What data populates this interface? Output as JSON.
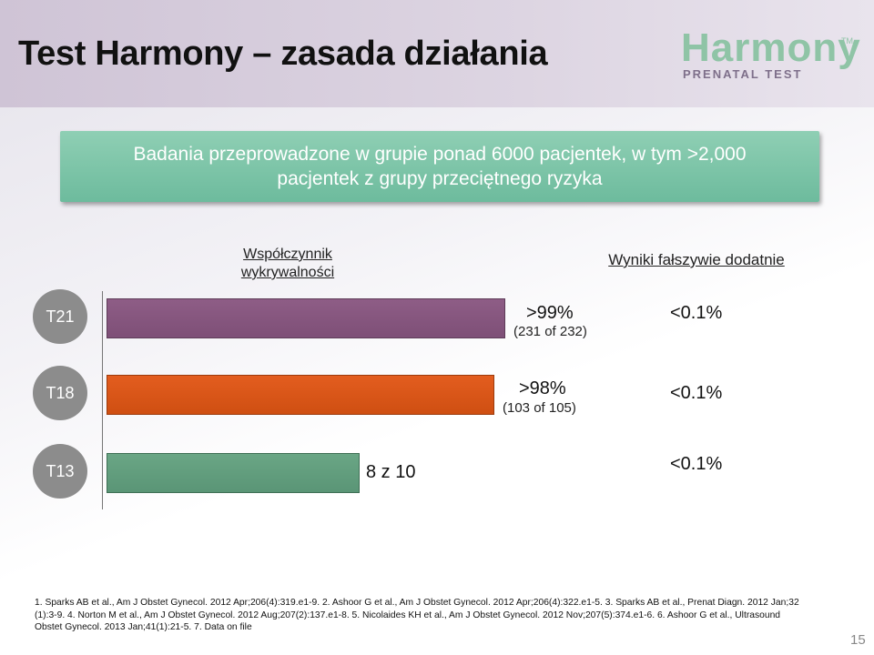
{
  "title": "Test Harmony – zasada działania",
  "logo": {
    "word": "Harmony",
    "tm": "TM",
    "sub": "PRENATAL TEST"
  },
  "banner": {
    "line1": "Badania przeprowadzone w grupie ponad 6000 pacjentek, w tym >2,000",
    "line2": "pacjentek z grupy przeciętnego ryzyka"
  },
  "columns": {
    "detection_line1": "Współczynnik",
    "detection_line2": "wykrywalności",
    "false_positive": "Wyniki fałszywie dodatnie"
  },
  "rows": [
    {
      "label": "T21",
      "value": ">99%",
      "detail": "(231 of 232)",
      "false_positive": "<0.1%",
      "color": "#7e4f77"
    },
    {
      "label": "T18",
      "value": ">98%",
      "detail": "(103 of 105)",
      "false_positive": "<0.1%",
      "color": "#cf4f12"
    },
    {
      "label": "T13",
      "value": "8 z 10",
      "detail": "",
      "false_positive": "<0.1%",
      "color": "#5a9576"
    }
  ],
  "references": {
    "line1": "1.  Sparks AB et al., Am J Obstet Gynecol. 2012 Apr;206(4):319.e1-9.  2.  Ashoor G et al., Am J Obstet Gynecol. 2012 Apr;206(4):322.e1-5.   3.  Sparks AB et al., Prenat Diagn. 2012 Jan;32",
    "line2": "(1):3-9.  4.  Norton M et al.,  Am J Obstet Gynecol. 2012 Aug;207(2):137.e1-8.   5.  Nicolaides KH et al., Am J Obstet Gynecol. 2012 Nov;207(5):374.e1-6.   6.  Ashoor G et al., Ultrasound",
    "line3": "Obstet Gynecol. 2013 Jan;41(1):21-5.   7.  Data on file"
  },
  "page_number": "15"
}
